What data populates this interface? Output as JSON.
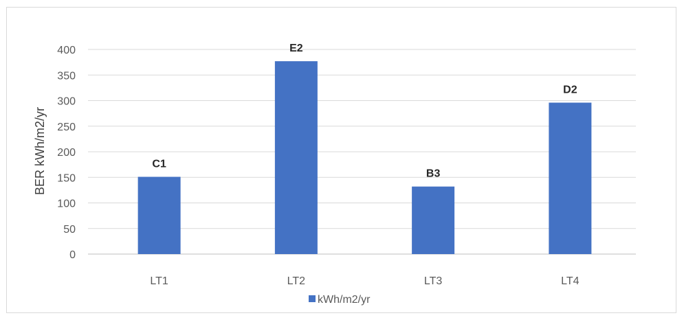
{
  "chart_data": {
    "type": "bar",
    "categories": [
      "LT1",
      "LT2",
      "LT3",
      "LT4"
    ],
    "series": [
      {
        "name": "kWh/m2/yr",
        "values": [
          151,
          377,
          132,
          296
        ],
        "color": "#4472c4"
      }
    ],
    "data_labels": [
      "C1",
      "E2",
      "B3",
      "D2"
    ],
    "ylabel": "BER kWh/m2/yr",
    "ylim": [
      0,
      400
    ],
    "yticks": [
      0,
      50,
      100,
      150,
      200,
      250,
      300,
      350,
      400
    ],
    "grid": true,
    "legend_position": "bottom"
  }
}
